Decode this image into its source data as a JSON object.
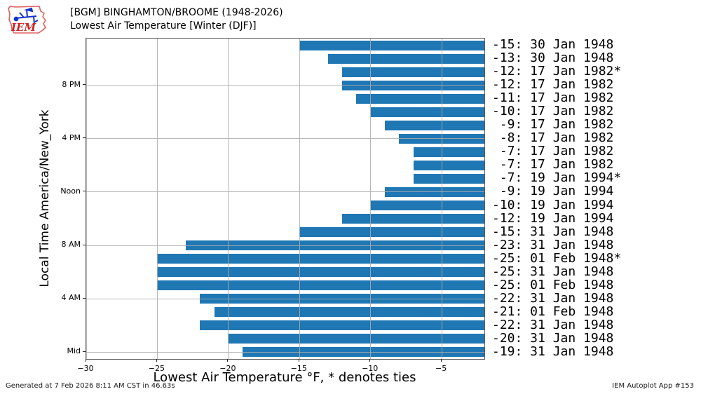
{
  "header": {
    "title_line1": "[BGM] BINGHAMTON/BROOME (1948-2026)",
    "title_line2": "Lowest Air Temperature [Winter (DJF)]",
    "logo_text": "IEM"
  },
  "footer": {
    "generated": "Generated at 7 Feb 2026 8:11 AM CST in 46.63s",
    "app": "IEM Autoplot App #153"
  },
  "chart_data": {
    "type": "bar",
    "orientation": "horizontal",
    "title": "[BGM] BINGHAMTON/BROOME (1948-2026) Lowest Air Temperature [Winter (DJF)]",
    "xlabel": "Lowest Air Temperature °F, * denotes ties",
    "ylabel": "Local Time America/New_York",
    "xlim": [
      -30,
      -2
    ],
    "grid": true,
    "bar_color": "#1f77b4",
    "grid_color": "#ababab",
    "frame_color": "#595959",
    "xticks": [
      {
        "v": -30,
        "label": "−30"
      },
      {
        "v": -25,
        "label": "−25"
      },
      {
        "v": -20,
        "label": "−20"
      },
      {
        "v": -15,
        "label": "−15"
      },
      {
        "v": -10,
        "label": "−10"
      },
      {
        "v": -5,
        "label": "−5"
      }
    ],
    "yticks": [
      {
        "hour": 20,
        "label": "8 PM"
      },
      {
        "hour": 16,
        "label": "4 PM"
      },
      {
        "hour": 12,
        "label": "Noon"
      },
      {
        "hour": 8,
        "label": "8 AM"
      },
      {
        "hour": 4,
        "label": "4 AM"
      },
      {
        "hour": 0,
        "label": "Mid"
      }
    ],
    "rows": [
      {
        "hour": 23,
        "value": -15,
        "label": "-15: 30 Jan 1948"
      },
      {
        "hour": 22,
        "value": -13,
        "label": "-13: 30 Jan 1948"
      },
      {
        "hour": 21,
        "value": -12,
        "label": "-12: 17 Jan 1982*"
      },
      {
        "hour": 20,
        "value": -12,
        "label": "-12: 17 Jan 1982"
      },
      {
        "hour": 19,
        "value": -11,
        "label": "-11: 17 Jan 1982"
      },
      {
        "hour": 18,
        "value": -10,
        "label": "-10: 17 Jan 1982"
      },
      {
        "hour": 17,
        "value": -9,
        "label": " -9: 17 Jan 1982"
      },
      {
        "hour": 16,
        "value": -8,
        "label": " -8: 17 Jan 1982"
      },
      {
        "hour": 15,
        "value": -7,
        "label": " -7: 17 Jan 1982"
      },
      {
        "hour": 14,
        "value": -7,
        "label": " -7: 17 Jan 1982"
      },
      {
        "hour": 13,
        "value": -7,
        "label": " -7: 19 Jan 1994*"
      },
      {
        "hour": 12,
        "value": -9,
        "label": " -9: 19 Jan 1994"
      },
      {
        "hour": 11,
        "value": -10,
        "label": "-10: 19 Jan 1994"
      },
      {
        "hour": 10,
        "value": -12,
        "label": "-12: 19 Jan 1994"
      },
      {
        "hour": 9,
        "value": -15,
        "label": "-15: 31 Jan 1948"
      },
      {
        "hour": 8,
        "value": -23,
        "label": "-23: 31 Jan 1948"
      },
      {
        "hour": 7,
        "value": -25,
        "label": "-25: 01 Feb 1948*"
      },
      {
        "hour": 6,
        "value": -25,
        "label": "-25: 31 Jan 1948"
      },
      {
        "hour": 5,
        "value": -25,
        "label": "-25: 01 Feb 1948"
      },
      {
        "hour": 4,
        "value": -22,
        "label": "-22: 31 Jan 1948"
      },
      {
        "hour": 3,
        "value": -21,
        "label": "-21: 01 Feb 1948"
      },
      {
        "hour": 2,
        "value": -22,
        "label": "-22: 31 Jan 1948"
      },
      {
        "hour": 1,
        "value": -20,
        "label": "-20: 31 Jan 1948"
      },
      {
        "hour": 0,
        "value": -19,
        "label": "-19: 31 Jan 1948"
      }
    ]
  }
}
